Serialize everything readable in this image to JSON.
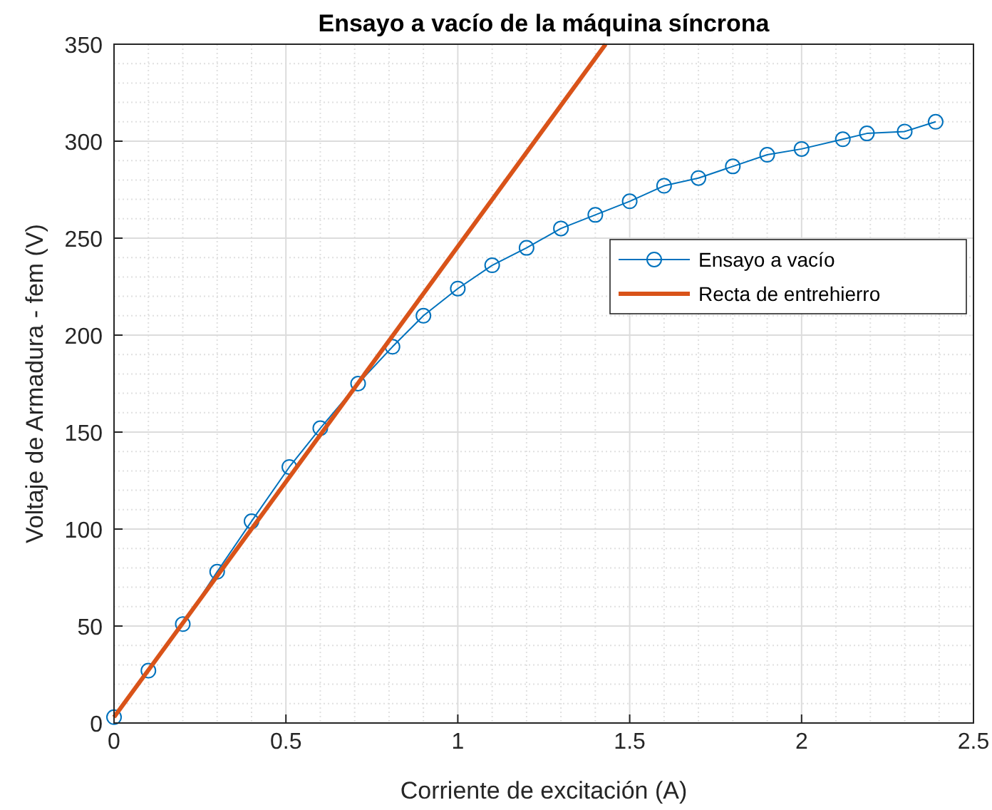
{
  "chart_data": {
    "type": "line",
    "title": "Ensayo a vacío de la máquina síncrona",
    "xlabel": "Corriente de excitación (A)",
    "ylabel": "Voltaje de Armadura - fem (V)",
    "xlim": [
      0,
      2.5
    ],
    "xticks": [
      0,
      0.5,
      1,
      1.5,
      2,
      2.5
    ],
    "ylim": [
      0,
      350
    ],
    "yticks": [
      0,
      50,
      100,
      150,
      200,
      250,
      300,
      350
    ],
    "grid": true,
    "legend": "right",
    "series": [
      {
        "name": "Ensayo a vacío",
        "color": "#0072bd",
        "marker": "circle",
        "x": [
          0,
          0.1,
          0.2,
          0.3,
          0.4,
          0.51,
          0.6,
          0.71,
          0.81,
          0.9,
          1.0,
          1.1,
          1.2,
          1.3,
          1.4,
          1.5,
          1.6,
          1.7,
          1.8,
          1.9,
          2.0,
          2.12,
          2.19,
          2.3,
          2.39
        ],
        "values": [
          3,
          27,
          51,
          78,
          104,
          132,
          152,
          175,
          194,
          210,
          224,
          236,
          245,
          255,
          262,
          269,
          277,
          281,
          287,
          293,
          296,
          301,
          304,
          305,
          310
        ]
      },
      {
        "name": "Recta de entrehierro",
        "color": "#d95319",
        "marker": "none",
        "x": [
          0,
          1.43
        ],
        "values": [
          3,
          350
        ]
      }
    ]
  }
}
